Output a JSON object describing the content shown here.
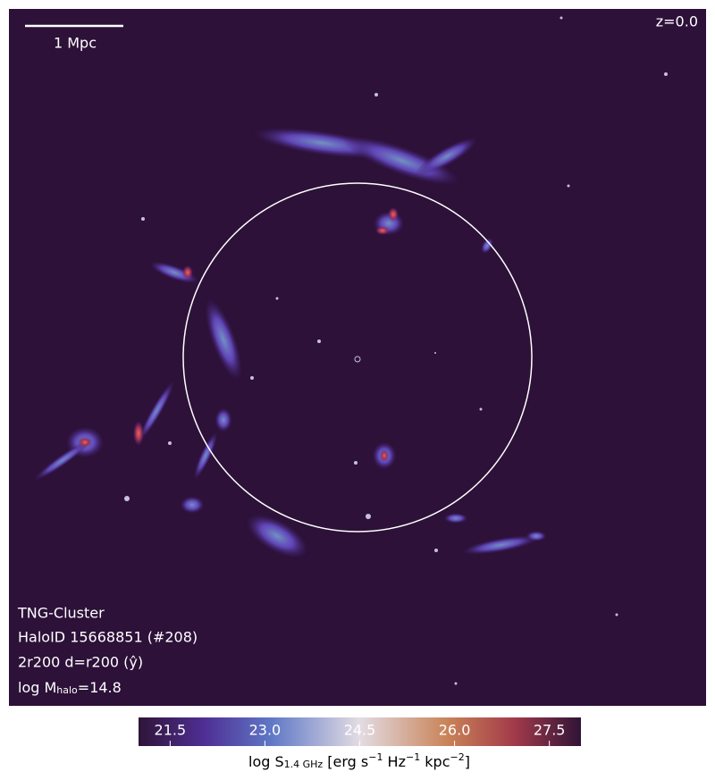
{
  "image": {
    "redshift": "z=0.0",
    "scale_bar": "1 Mpc",
    "info": {
      "simulation": "TNG-Cluster",
      "halo": "HaloID 15668851 (#208)",
      "view": "2r200 d=r200 (ŷ)",
      "mass": [
        {
          "text": "log M"
        },
        {
          "sub": "halo"
        },
        {
          "text": "=14.8"
        }
      ]
    }
  },
  "colorbar": {
    "lim": [
      21,
      28
    ],
    "ticks": [
      21.5,
      {
        "value": 23,
        "label": "23.0"
      },
      24.5,
      {
        "value": 26,
        "label": "26.0"
      },
      27.5
    ],
    "label": [
      {
        "text": "log S"
      },
      {
        "sub": "1.4 GHz"
      },
      {
        "text": " [erg s"
      },
      {
        "sup": "−1"
      },
      {
        "text": " Hz"
      },
      {
        "sup": "−1"
      },
      {
        "text": " kpc"
      },
      {
        "sup": "−2"
      },
      {
        "text": "]"
      }
    ]
  }
}
